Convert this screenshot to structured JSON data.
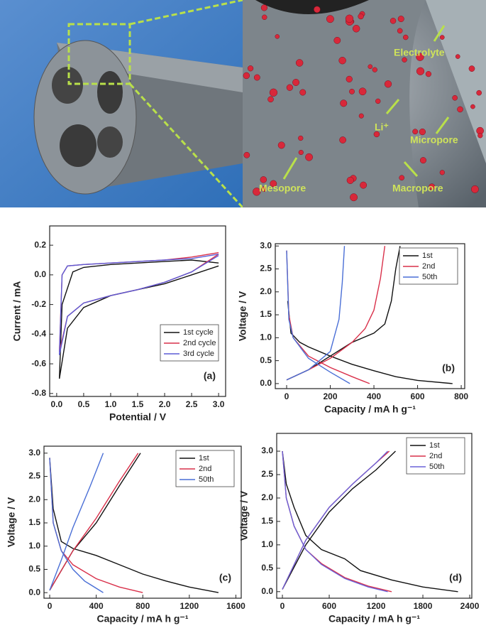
{
  "illustration": {
    "labels": [
      "Electrolyte",
      "Li⁺",
      "Micropore",
      "Mesopore",
      "Macropore"
    ]
  },
  "chart_data": [
    {
      "type": "line",
      "panel_label": "(a)",
      "xlabel": "Potential / V",
      "ylabel": "Current / mA",
      "xlim": [
        -0.13,
        3.13
      ],
      "ylim": [
        -0.82,
        0.33
      ],
      "xticks": [
        {
          "value": 0,
          "label": "0.0"
        },
        0.5,
        {
          "value": 1,
          "label": "1.0"
        },
        1.5,
        {
          "value": 2,
          "label": "2.0"
        },
        2.5,
        {
          "value": 3,
          "label": "3.0"
        }
      ],
      "yticks": [
        -0.8,
        -0.6,
        -0.4,
        -0.2,
        {
          "value": 0,
          "label": "0.0"
        },
        0.2
      ],
      "legend": "lower right",
      "series": [
        {
          "name": "1st  cycle",
          "color": "#111111",
          "x": [
            3.0,
            2.5,
            2.0,
            1.5,
            1.0,
            0.5,
            0.2,
            0.05,
            0.1,
            0.3,
            0.5,
            1.0,
            1.5,
            2.0,
            2.5,
            3.0
          ],
          "values": [
            0.06,
            0.0,
            -0.06,
            -0.1,
            -0.14,
            -0.22,
            -0.36,
            -0.7,
            -0.2,
            0.02,
            0.05,
            0.07,
            0.08,
            0.09,
            0.1,
            0.08
          ]
        },
        {
          "name": "2nd cycle",
          "color": "#d9304a",
          "x": [
            3.0,
            2.5,
            2.0,
            1.5,
            1.0,
            0.5,
            0.2,
            0.05,
            0.1,
            0.2,
            0.5,
            1.0,
            1.5,
            2.0,
            2.5,
            3.0
          ],
          "values": [
            0.14,
            0.02,
            -0.05,
            -0.1,
            -0.14,
            -0.19,
            -0.28,
            -0.52,
            0.0,
            0.06,
            0.07,
            0.08,
            0.09,
            0.1,
            0.12,
            0.15
          ]
        },
        {
          "name": "3rd cycle",
          "color": "#5b5bd6",
          "x": [
            3.0,
            2.5,
            2.0,
            1.5,
            1.0,
            0.5,
            0.2,
            0.05,
            0.1,
            0.2,
            0.5,
            1.0,
            1.5,
            2.0,
            2.5,
            3.0
          ],
          "values": [
            0.13,
            0.02,
            -0.05,
            -0.1,
            -0.14,
            -0.19,
            -0.28,
            -0.54,
            0.0,
            0.06,
            0.07,
            0.08,
            0.09,
            0.1,
            0.11,
            0.14
          ]
        }
      ]
    },
    {
      "type": "line",
      "panel_label": "(b)",
      "xlabel": "Capacity / mA h g⁻¹",
      "ylabel": "Voltage / V",
      "xlim": [
        -52,
        816
      ],
      "ylim": [
        -0.11,
        3.05
      ],
      "xticks": [
        0,
        200,
        400,
        600,
        800
      ],
      "yticks": [
        {
          "value": 0,
          "label": "0.0"
        },
        0.5,
        {
          "value": 1,
          "label": "1.0"
        },
        1.5,
        {
          "value": 2,
          "label": "2.0"
        },
        2.5,
        {
          "value": 3,
          "label": "3.0"
        }
      ],
      "legend": "upper right",
      "series": [
        {
          "name": "1st",
          "color": "#111111",
          "x": [
            5,
            20,
            60,
            100,
            200,
            300,
            400,
            500,
            600,
            760,
            null,
            0,
            100,
            200,
            300,
            400,
            450,
            480,
            500,
            520
          ],
          "values": [
            1.8,
            1.1,
            0.9,
            0.8,
            0.6,
            0.42,
            0.28,
            0.15,
            0.07,
            0.0,
            null,
            0.08,
            0.3,
            0.6,
            0.9,
            1.1,
            1.3,
            1.8,
            2.5,
            3.0
          ]
        },
        {
          "name": "2nd",
          "color": "#d9304a",
          "x": [
            0,
            10,
            30,
            100,
            200,
            300,
            380,
            null,
            0,
            100,
            200,
            300,
            360,
            400,
            430,
            450
          ],
          "values": [
            2.9,
            1.5,
            1.0,
            0.6,
            0.35,
            0.15,
            0.0,
            null,
            0.08,
            0.3,
            0.55,
            0.9,
            1.2,
            1.6,
            2.3,
            3.0
          ]
        },
        {
          "name": "50th",
          "color": "#4a6fd6",
          "x": [
            0,
            10,
            30,
            100,
            200,
            290,
            null,
            0,
            100,
            200,
            240,
            255,
            265
          ],
          "values": [
            2.9,
            1.4,
            1.0,
            0.55,
            0.25,
            0.0,
            null,
            0.08,
            0.3,
            0.7,
            1.4,
            2.2,
            3.0
          ]
        }
      ]
    },
    {
      "type": "line",
      "panel_label": "(c)",
      "xlabel": "Capacity / mA h g⁻¹",
      "ylabel": "Voltage / V",
      "xlim": [
        -49,
        1646
      ],
      "ylim": [
        -0.12,
        3.15
      ],
      "xticks": [
        0,
        400,
        800,
        1200,
        1600
      ],
      "yticks": [
        {
          "value": 0,
          "label": "0.0"
        },
        0.5,
        {
          "value": 1,
          "label": "1.0"
        },
        1.5,
        {
          "value": 2,
          "label": "2.0"
        },
        2.5,
        {
          "value": 3,
          "label": "3.0"
        }
      ],
      "legend": "upper right",
      "series": [
        {
          "name": "1st",
          "color": "#111111",
          "x": [
            0,
            30,
            100,
            200,
            400,
            600,
            800,
            1000,
            1200,
            1450,
            null,
            0,
            200,
            400,
            600,
            780
          ],
          "values": [
            2.9,
            1.8,
            1.1,
            0.95,
            0.8,
            0.6,
            0.4,
            0.25,
            0.12,
            0.0,
            null,
            0.05,
            0.9,
            1.5,
            2.3,
            3.0
          ]
        },
        {
          "name": "2nd",
          "color": "#d9304a",
          "x": [
            0,
            30,
            100,
            200,
            400,
            600,
            800,
            null,
            0,
            200,
            400,
            600,
            760
          ],
          "values": [
            2.9,
            1.5,
            0.9,
            0.6,
            0.3,
            0.12,
            0.0,
            null,
            0.05,
            0.9,
            1.6,
            2.4,
            3.0
          ]
        },
        {
          "name": "50th",
          "color": "#4a6fd6",
          "x": [
            0,
            30,
            100,
            200,
            300,
            460,
            null,
            0,
            100,
            200,
            350,
            460
          ],
          "values": [
            2.9,
            1.5,
            0.9,
            0.5,
            0.25,
            0.0,
            null,
            0.05,
            0.7,
            1.4,
            2.3,
            3.0
          ]
        }
      ]
    },
    {
      "type": "line",
      "panel_label": "(d)",
      "xlabel": "Capacity / mA h g⁻¹",
      "ylabel": "Voltage / V",
      "xlim": [
        -73,
        2427
      ],
      "ylim": [
        -0.14,
        3.38
      ],
      "xticks": [
        0,
        600,
        1200,
        1800,
        2400
      ],
      "yticks": [
        {
          "value": 0,
          "label": "0.0"
        },
        0.5,
        {
          "value": 1,
          "label": "1.0"
        },
        1.5,
        {
          "value": 2,
          "label": "2.0"
        },
        2.5,
        {
          "value": 3,
          "label": "3.0"
        }
      ],
      "legend": "upper right",
      "series": [
        {
          "name": "1st",
          "color": "#111111",
          "x": [
            0,
            50,
            150,
            300,
            500,
            800,
            1000,
            1400,
            1800,
            2250,
            null,
            0,
            300,
            600,
            900,
            1200,
            1450
          ],
          "values": [
            3.0,
            2.3,
            1.8,
            1.2,
            0.9,
            0.7,
            0.45,
            0.25,
            0.1,
            0.0,
            null,
            0.05,
            1.0,
            1.7,
            2.2,
            2.6,
            3.0
          ]
        },
        {
          "name": "2nd",
          "color": "#d9304a",
          "x": [
            0,
            50,
            150,
            300,
            500,
            800,
            1100,
            1400,
            null,
            0,
            300,
            600,
            900,
            1200,
            1370
          ],
          "values": [
            3.0,
            2.0,
            1.4,
            0.9,
            0.6,
            0.3,
            0.12,
            0.0,
            null,
            0.05,
            1.1,
            1.8,
            2.3,
            2.75,
            3.0
          ]
        },
        {
          "name": "50th",
          "color": "#6a62d8",
          "x": [
            0,
            50,
            150,
            300,
            500,
            800,
            1100,
            1350,
            null,
            0,
            300,
            600,
            900,
            1200,
            1350
          ],
          "values": [
            3.0,
            2.0,
            1.4,
            0.9,
            0.58,
            0.28,
            0.1,
            0.0,
            null,
            0.05,
            1.1,
            1.8,
            2.3,
            2.75,
            3.0
          ]
        }
      ]
    }
  ]
}
